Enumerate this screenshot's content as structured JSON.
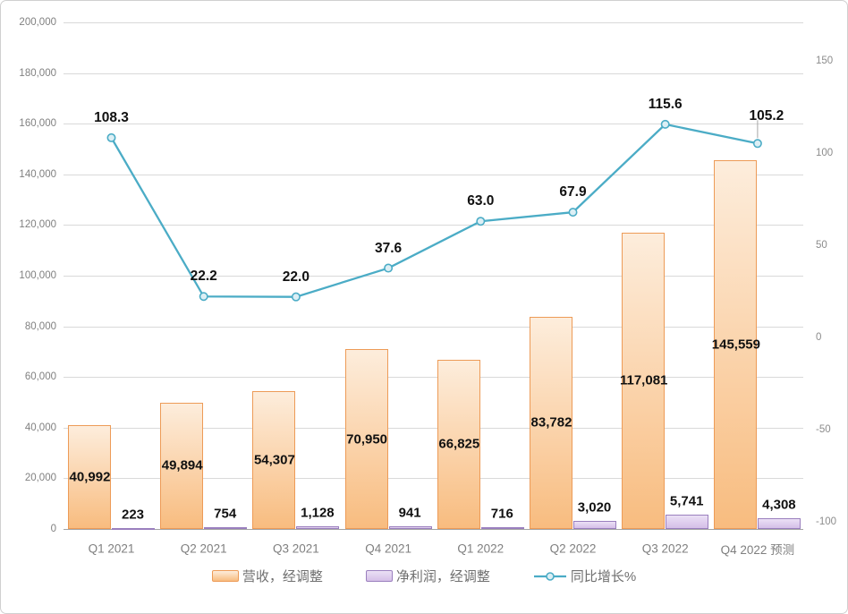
{
  "chart_data": {
    "type": "combo",
    "title": "",
    "categories": [
      "Q1 2021",
      "Q2 2021",
      "Q3 2021",
      "Q4 2021",
      "Q1 2022",
      "Q2 2022",
      "Q3 2022",
      "Q4 2022 预测"
    ],
    "series": [
      {
        "name": "营收，经调整",
        "type": "bar",
        "axis": "left",
        "values": [
          40992,
          49894,
          54307,
          70950,
          66825,
          83782,
          117081,
          145559
        ],
        "fill_top": "#FDEDDC",
        "fill_bottom": "#F8BC7F",
        "border": "#ED9B57"
      },
      {
        "name": "净利润，经调整",
        "type": "bar",
        "axis": "left",
        "values": [
          223,
          754,
          1128,
          941,
          716,
          3020,
          5741,
          4308
        ],
        "fill_top": "#EBE0F5",
        "fill_bottom": "#D5BFE8",
        "border": "#9A7FBE"
      },
      {
        "name": "同比增长%",
        "type": "line",
        "axis": "right",
        "values": [
          108.3,
          22.2,
          22.0,
          37.6,
          63.0,
          67.9,
          115.6,
          105.2
        ],
        "color": "#4BACC6",
        "marker_fill": "#DCEFF5"
      }
    ],
    "left_axis": {
      "min": 0,
      "max": 200000,
      "step": 20000,
      "tick_labels": [
        "200,000",
        "180,000",
        "160,000",
        "140,000",
        "120,000",
        "100,000",
        "80,000",
        "60,000",
        "40,000",
        "20,000",
        "0"
      ]
    },
    "right_axis": {
      "ticks": [
        150,
        100,
        50,
        0,
        -50,
        -100
      ],
      "tick_labels": [
        "150",
        "100",
        "50",
        "0",
        "-50",
        "-100"
      ]
    },
    "grid": true,
    "legend_position": "bottom"
  }
}
